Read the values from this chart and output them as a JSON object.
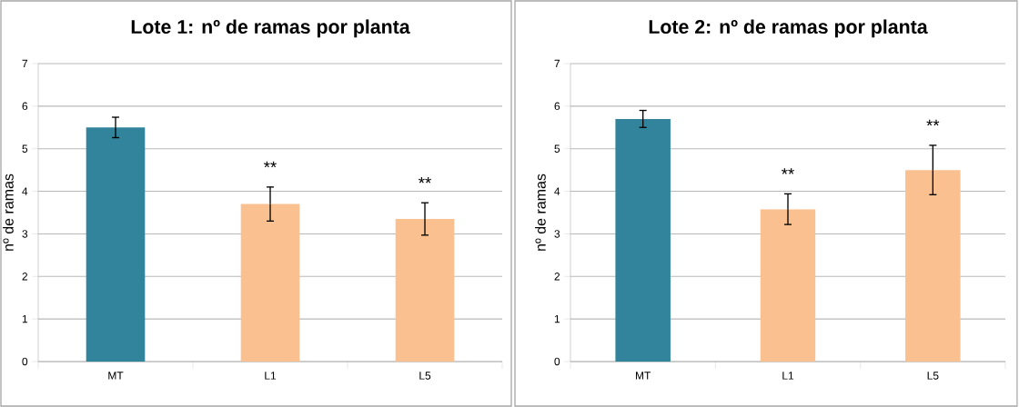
{
  "chart_data": [
    {
      "type": "bar",
      "title": "Lote 1: nº de ramas por planta",
      "ylabel": "nº de ramas",
      "categories": [
        "MT",
        "L1",
        "L5"
      ],
      "values": [
        5.5,
        3.7,
        3.35
      ],
      "colors": [
        "#31849b",
        "#fac090",
        "#fac090"
      ],
      "errors": [
        0.24,
        0.4,
        0.38
      ],
      "ylim": [
        0,
        7
      ],
      "yticks": [
        0,
        1,
        2,
        3,
        4,
        5,
        6,
        7
      ],
      "grid": "y",
      "annotations": [
        "**",
        "**"
      ]
    },
    {
      "type": "bar",
      "title": "Lote 2: nº de ramas por planta",
      "ylabel": "nº de ramas",
      "categories": [
        "MT",
        "L1",
        "L5"
      ],
      "values": [
        5.7,
        3.58,
        4.5
      ],
      "colors": [
        "#31849b",
        "#fac090",
        "#fac090"
      ],
      "errors": [
        0.2,
        0.36,
        0.58
      ],
      "ylim": [
        0,
        7
      ],
      "yticks": [
        0,
        1,
        2,
        3,
        4,
        5,
        6,
        7
      ],
      "grid": "y",
      "annotations": [
        "**",
        "**"
      ]
    }
  ]
}
